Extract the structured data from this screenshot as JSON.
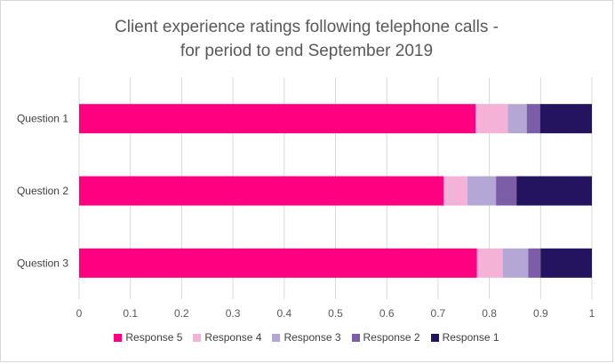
{
  "chart_data": {
    "type": "bar",
    "orientation": "horizontal",
    "stacked": true,
    "title": "Client experience ratings following telephone calls - for period to end September 2019",
    "title_lines": [
      "Client experience ratings following telephone calls -",
      "for period to end September 2019"
    ],
    "categories": [
      "Question 1",
      "Question 2",
      "Question 3"
    ],
    "series": [
      {
        "name": "Response 5",
        "color": "#FF0080",
        "values": [
          0.773,
          0.711,
          0.776
        ]
      },
      {
        "name": "Response 4",
        "color": "#F4B3D6",
        "values": [
          0.063,
          0.046,
          0.05
        ]
      },
      {
        "name": "Response 3",
        "color": "#B4A7D6",
        "values": [
          0.037,
          0.056,
          0.05
        ]
      },
      {
        "name": "Response 2",
        "color": "#7B5EA7",
        "values": [
          0.026,
          0.04,
          0.024
        ]
      },
      {
        "name": "Response 1",
        "color": "#24135F",
        "values": [
          0.101,
          0.147,
          0.1
        ]
      }
    ],
    "x_ticks": [
      "0",
      "0.1",
      "0.2",
      "0.3",
      "0.4",
      "0.5",
      "0.6",
      "0.7",
      "0.8",
      "0.9",
      "1"
    ],
    "xlim": [
      0,
      1
    ],
    "grid": true,
    "legend_position": "bottom"
  }
}
